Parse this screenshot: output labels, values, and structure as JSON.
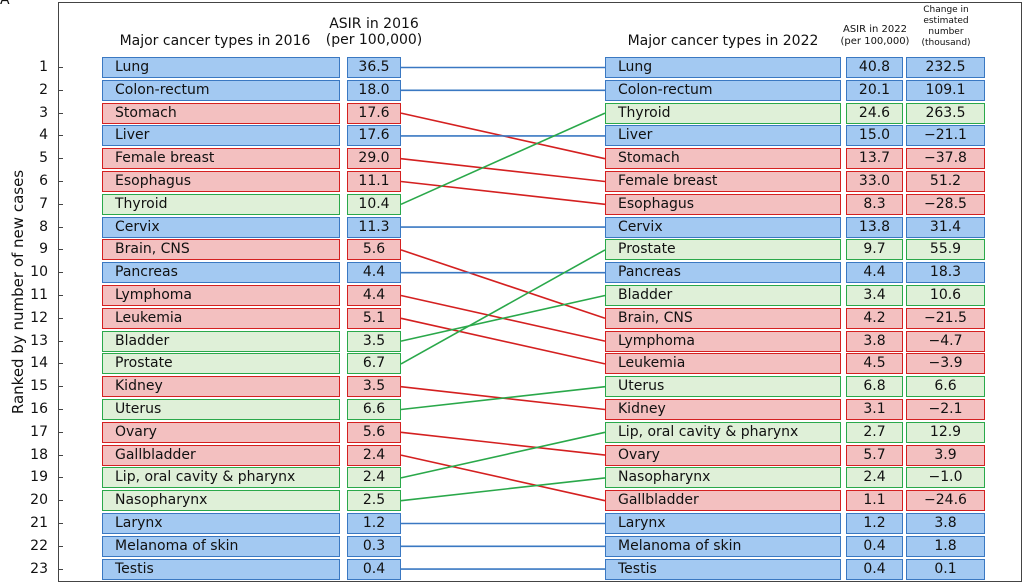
{
  "panel_letter": "A",
  "headers": {
    "left_types": "Major cancer types in 2016",
    "left_asir_line1": "ASIR in 2016",
    "left_asir_line2": "(per 100,000)",
    "right_types": "Major cancer types in 2022",
    "right_asir_line1": "ASIR in 2022",
    "right_asir_line2": "(per 100,000)",
    "change_line1": "Change in",
    "change_line2": "estimated",
    "change_line3": "number",
    "change_line4": "(thousand)"
  },
  "ylabel": "Ranked by number of new cases",
  "colors": {
    "blue_fill": "#a3c9f2",
    "blue_line": "#3a78c2",
    "red_fill": "#f3c0c0",
    "red_line": "#d42020",
    "green_fill": "#dff0d8",
    "green_line": "#2aa84a"
  },
  "chart_data": {
    "type": "table",
    "ranks": [
      "1",
      "2",
      "3",
      "4",
      "5",
      "6",
      "7",
      "8",
      "9",
      "10",
      "11",
      "12",
      "13",
      "14",
      "15",
      "16",
      "17",
      "18",
      "19",
      "20",
      "21",
      "22",
      "23"
    ],
    "left": [
      {
        "name": "Lung",
        "asir": "36.5",
        "color": "blue"
      },
      {
        "name": "Colon-rectum",
        "asir": "18.0",
        "color": "blue"
      },
      {
        "name": "Stomach",
        "asir": "17.6",
        "color": "red"
      },
      {
        "name": "Liver",
        "asir": "17.6",
        "color": "blue"
      },
      {
        "name": "Female breast",
        "asir": "29.0",
        "color": "red"
      },
      {
        "name": "Esophagus",
        "asir": "11.1",
        "color": "red"
      },
      {
        "name": "Thyroid",
        "asir": "10.4",
        "color": "green"
      },
      {
        "name": "Cervix",
        "asir": "11.3",
        "color": "blue"
      },
      {
        "name": "Brain, CNS",
        "asir": "5.6",
        "color": "red"
      },
      {
        "name": "Pancreas",
        "asir": "4.4",
        "color": "blue"
      },
      {
        "name": "Lymphoma",
        "asir": "4.4",
        "color": "red"
      },
      {
        "name": "Leukemia",
        "asir": "5.1",
        "color": "red"
      },
      {
        "name": "Bladder",
        "asir": "3.5",
        "color": "green"
      },
      {
        "name": "Prostate",
        "asir": "6.7",
        "color": "green"
      },
      {
        "name": "Kidney",
        "asir": "3.5",
        "color": "red"
      },
      {
        "name": "Uterus",
        "asir": "6.6",
        "color": "green"
      },
      {
        "name": "Ovary",
        "asir": "5.6",
        "color": "red"
      },
      {
        "name": "Gallbladder",
        "asir": "2.4",
        "color": "red"
      },
      {
        "name": "Lip, oral cavity & pharynx",
        "asir": "2.4",
        "color": "green"
      },
      {
        "name": "Nasopharynx",
        "asir": "2.5",
        "color": "green"
      },
      {
        "name": "Larynx",
        "asir": "1.2",
        "color": "blue"
      },
      {
        "name": "Melanoma of skin",
        "asir": "0.3",
        "color": "blue"
      },
      {
        "name": "Testis",
        "asir": "0.4",
        "color": "blue"
      }
    ],
    "right": [
      {
        "name": "Lung",
        "asir": "40.8",
        "change": "232.5",
        "color": "blue"
      },
      {
        "name": "Colon-rectum",
        "asir": "20.1",
        "change": "109.1",
        "color": "blue"
      },
      {
        "name": "Thyroid",
        "asir": "24.6",
        "change": "263.5",
        "color": "green"
      },
      {
        "name": "Liver",
        "asir": "15.0",
        "change": "−21.1",
        "color": "blue"
      },
      {
        "name": "Stomach",
        "asir": "13.7",
        "change": "−37.8",
        "color": "red"
      },
      {
        "name": "Female breast",
        "asir": "33.0",
        "change": "51.2",
        "color": "red"
      },
      {
        "name": "Esophagus",
        "asir": "8.3",
        "change": "−28.5",
        "color": "red"
      },
      {
        "name": "Cervix",
        "asir": "13.8",
        "change": "31.4",
        "color": "blue"
      },
      {
        "name": "Prostate",
        "asir": "9.7",
        "change": "55.9",
        "color": "green"
      },
      {
        "name": "Pancreas",
        "asir": "4.4",
        "change": "18.3",
        "color": "blue"
      },
      {
        "name": "Bladder",
        "asir": "3.4",
        "change": "10.6",
        "color": "green"
      },
      {
        "name": "Brain, CNS",
        "asir": "4.2",
        "change": "−21.5",
        "color": "red"
      },
      {
        "name": "Lymphoma",
        "asir": "3.8",
        "change": "−4.7",
        "color": "red"
      },
      {
        "name": "Leukemia",
        "asir": "4.5",
        "change": "−3.9",
        "color": "red"
      },
      {
        "name": "Uterus",
        "asir": "6.8",
        "change": "6.6",
        "color": "green"
      },
      {
        "name": "Kidney",
        "asir": "3.1",
        "change": "−2.1",
        "color": "red"
      },
      {
        "name": "Lip, oral cavity & pharynx",
        "asir": "2.7",
        "change": "12.9",
        "color": "green"
      },
      {
        "name": "Ovary",
        "asir": "5.7",
        "change": "3.9",
        "color": "red"
      },
      {
        "name": "Nasopharynx",
        "asir": "2.4",
        "change": "−1.0",
        "color": "green"
      },
      {
        "name": "Gallbladder",
        "asir": "1.1",
        "change": "−24.6",
        "color": "red"
      },
      {
        "name": "Larynx",
        "asir": "1.2",
        "change": "3.8",
        "color": "blue"
      },
      {
        "name": "Melanoma of skin",
        "asir": "0.4",
        "change": "1.8",
        "color": "blue"
      },
      {
        "name": "Testis",
        "asir": "0.4",
        "change": "0.1",
        "color": "blue"
      }
    ]
  }
}
